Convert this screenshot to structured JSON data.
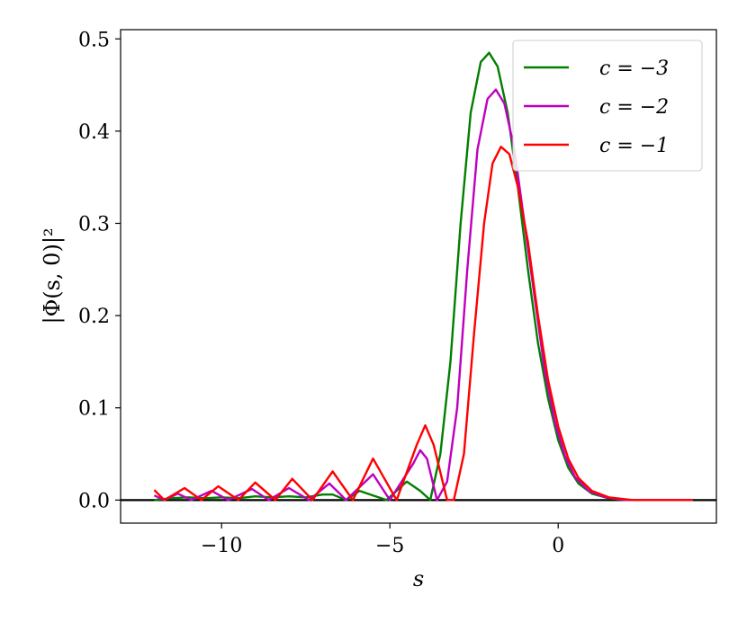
{
  "chart_data": {
    "type": "line",
    "xlabel": "s",
    "ylabel": "|Φ(s, 0)|²",
    "xlim": [
      -13,
      4.7
    ],
    "ylim": [
      -0.025,
      0.51
    ],
    "x_ticks": [
      -10,
      -5,
      0
    ],
    "x_tick_labels": [
      "−10",
      "−5",
      "0"
    ],
    "y_ticks": [
      0.0,
      0.1,
      0.2,
      0.3,
      0.4,
      0.5
    ],
    "y_tick_labels": [
      "0.0",
      "0.1",
      "0.2",
      "0.3",
      "0.4",
      "0.5"
    ],
    "grid": false,
    "legend_position": "top-right",
    "zero_line": true,
    "x_range": [
      -12,
      4
    ],
    "series": [
      {
        "name": "c = −3",
        "color": "#007f00",
        "points": [
          [
            -12,
            0.0
          ],
          [
            -11.5,
            0.002
          ],
          [
            -11,
            0.003
          ],
          [
            -10.5,
            0.002
          ],
          [
            -10,
            0.003
          ],
          [
            -9.5,
            0.002
          ],
          [
            -9,
            0.004
          ],
          [
            -8.5,
            0.003
          ],
          [
            -8,
            0.004
          ],
          [
            -7.5,
            0.003
          ],
          [
            -7,
            0.006
          ],
          [
            -6.7,
            0.006
          ],
          [
            -6.3,
            0.0
          ],
          [
            -5.9,
            0.01
          ],
          [
            -5.5,
            0.005
          ],
          [
            -5.1,
            0.0
          ],
          [
            -4.5,
            0.02
          ],
          [
            -4.1,
            0.01
          ],
          [
            -3.8,
            0.0
          ],
          [
            -3.5,
            0.05
          ],
          [
            -3.2,
            0.15
          ],
          [
            -2.9,
            0.3
          ],
          [
            -2.6,
            0.42
          ],
          [
            -2.3,
            0.475
          ],
          [
            -2.05,
            0.485
          ],
          [
            -1.8,
            0.47
          ],
          [
            -1.5,
            0.42
          ],
          [
            -1.2,
            0.34
          ],
          [
            -0.9,
            0.25
          ],
          [
            -0.6,
            0.17
          ],
          [
            -0.3,
            0.11
          ],
          [
            0,
            0.065
          ],
          [
            0.3,
            0.035
          ],
          [
            0.6,
            0.018
          ],
          [
            1.0,
            0.007
          ],
          [
            1.5,
            0.002
          ],
          [
            2,
            0.0
          ],
          [
            3,
            0.0
          ],
          [
            4,
            0.0
          ]
        ]
      },
      {
        "name": "c = −2",
        "color": "#bf00bf",
        "points": [
          [
            -12,
            0.005
          ],
          [
            -11.7,
            0.0
          ],
          [
            -11.3,
            0.007
          ],
          [
            -10.9,
            0.0
          ],
          [
            -10.3,
            0.01
          ],
          [
            -9.8,
            0.0
          ],
          [
            -9.1,
            0.012
          ],
          [
            -8.6,
            0.0
          ],
          [
            -8.0,
            0.013
          ],
          [
            -7.4,
            0.0
          ],
          [
            -6.8,
            0.018
          ],
          [
            -6.3,
            0.0
          ],
          [
            -5.5,
            0.028
          ],
          [
            -5.0,
            0.0
          ],
          [
            -4.3,
            0.04
          ],
          [
            -4.1,
            0.054
          ],
          [
            -3.9,
            0.045
          ],
          [
            -3.6,
            0.0
          ],
          [
            -3.3,
            0.02
          ],
          [
            -3.0,
            0.1
          ],
          [
            -2.7,
            0.25
          ],
          [
            -2.4,
            0.38
          ],
          [
            -2.1,
            0.435
          ],
          [
            -1.85,
            0.445
          ],
          [
            -1.6,
            0.43
          ],
          [
            -1.3,
            0.38
          ],
          [
            -1.0,
            0.3
          ],
          [
            -0.7,
            0.22
          ],
          [
            -0.4,
            0.14
          ],
          [
            -0.1,
            0.085
          ],
          [
            0.2,
            0.048
          ],
          [
            0.5,
            0.025
          ],
          [
            0.9,
            0.01
          ],
          [
            1.4,
            0.003
          ],
          [
            2,
            0.0
          ],
          [
            3,
            0.0
          ],
          [
            4,
            0.0
          ]
        ]
      },
      {
        "name": "c = −1",
        "color": "#ff0000",
        "points": [
          [
            -12,
            0.011
          ],
          [
            -11.7,
            0.0
          ],
          [
            -11.1,
            0.013
          ],
          [
            -10.6,
            0.0
          ],
          [
            -10.1,
            0.015
          ],
          [
            -9.5,
            0.0
          ],
          [
            -9.0,
            0.019
          ],
          [
            -8.4,
            0.0
          ],
          [
            -7.9,
            0.023
          ],
          [
            -7.3,
            0.0
          ],
          [
            -6.7,
            0.031
          ],
          [
            -6.1,
            0.0
          ],
          [
            -5.5,
            0.045
          ],
          [
            -4.8,
            0.0
          ],
          [
            -4.2,
            0.06
          ],
          [
            -3.95,
            0.081
          ],
          [
            -3.7,
            0.06
          ],
          [
            -3.3,
            0.0
          ],
          [
            -3.1,
            0.0
          ],
          [
            -2.8,
            0.05
          ],
          [
            -2.5,
            0.18
          ],
          [
            -2.2,
            0.3
          ],
          [
            -1.95,
            0.365
          ],
          [
            -1.7,
            0.383
          ],
          [
            -1.45,
            0.375
          ],
          [
            -1.2,
            0.34
          ],
          [
            -0.9,
            0.28
          ],
          [
            -0.6,
            0.2
          ],
          [
            -0.3,
            0.13
          ],
          [
            0,
            0.08
          ],
          [
            0.3,
            0.045
          ],
          [
            0.6,
            0.024
          ],
          [
            1.0,
            0.01
          ],
          [
            1.5,
            0.003
          ],
          [
            2.2,
            0.0
          ],
          [
            3,
            0.0
          ],
          [
            4,
            0.0
          ]
        ]
      }
    ]
  }
}
